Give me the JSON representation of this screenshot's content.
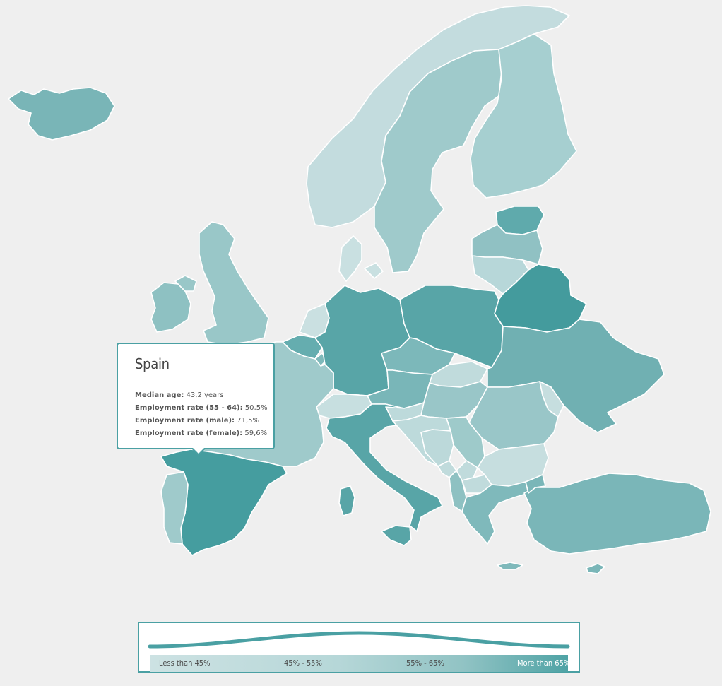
{
  "map": {
    "countries": [
      {
        "name": "Iceland",
        "fill": "#79b5b7"
      },
      {
        "name": "Norway",
        "fill": "#c3dcde"
      },
      {
        "name": "Sweden",
        "fill": "#9fcacb"
      },
      {
        "name": "Finland",
        "fill": "#a6cfd0"
      },
      {
        "name": "Estonia",
        "fill": "#5faaac"
      },
      {
        "name": "Latvia",
        "fill": "#90c1c3"
      },
      {
        "name": "Lithuania",
        "fill": "#b7d7d9"
      },
      {
        "name": "Belarus",
        "fill": "#449b9d"
      },
      {
        "name": "Ireland",
        "fill": "#8ec1c2"
      },
      {
        "name": "United Kingdom",
        "fill": "#99c7c8"
      },
      {
        "name": "Denmark",
        "fill": "#c9e0e1"
      },
      {
        "name": "Netherlands",
        "fill": "#cae0e1"
      },
      {
        "name": "Belgium",
        "fill": "#65adaf"
      },
      {
        "name": "Luxembourg",
        "fill": "#7fb9ba"
      },
      {
        "name": "Germany",
        "fill": "#58a5a7"
      },
      {
        "name": "Poland",
        "fill": "#58a5a7"
      },
      {
        "name": "Czechia",
        "fill": "#7cb8ba"
      },
      {
        "name": "Slovakia",
        "fill": "#c0dbdc"
      },
      {
        "name": "Austria",
        "fill": "#79b6b8"
      },
      {
        "name": "Switzerland",
        "fill": "#c7dfe0"
      },
      {
        "name": "France",
        "fill": "#9fcacb"
      },
      {
        "name": "Spain",
        "fill": "#459d9f"
      },
      {
        "name": "Portugal",
        "fill": "#9fcacb"
      },
      {
        "name": "Italy",
        "fill": "#58a5a7"
      },
      {
        "name": "Slovenia",
        "fill": "#bddadb"
      },
      {
        "name": "Hungary",
        "fill": "#99c6c8"
      },
      {
        "name": "Ukraine",
        "fill": "#70b0b2"
      },
      {
        "name": "Moldova",
        "fill": "#c6dedf"
      },
      {
        "name": "Romania",
        "fill": "#99c6c8"
      },
      {
        "name": "Croatia",
        "fill": "#bddadb"
      },
      {
        "name": "Bosnia and Herzegovina",
        "fill": "#bcd9da"
      },
      {
        "name": "Serbia",
        "fill": "#9ecaca"
      },
      {
        "name": "Montenegro",
        "fill": "#c0dbdc"
      },
      {
        "name": "Kosovo",
        "fill": "#c0dbdc"
      },
      {
        "name": "Albania",
        "fill": "#8ec1c2"
      },
      {
        "name": "North Macedonia",
        "fill": "#c0dbdc"
      },
      {
        "name": "Bulgaria",
        "fill": "#c6dedf"
      },
      {
        "name": "Greece",
        "fill": "#7fb9bb"
      },
      {
        "name": "Turkey",
        "fill": "#7ab6b8"
      },
      {
        "name": "Cyprus",
        "fill": "#7ab6b8"
      }
    ]
  },
  "tooltip": {
    "title": "Spain",
    "rows": [
      {
        "label": "Median age:",
        "value": "43,2 years"
      },
      {
        "label": "Employment rate (55 - 64):",
        "value": "50,5%"
      },
      {
        "label": "Employment rate (male):",
        "value": "71,5%"
      },
      {
        "label": "Employment rate (female):",
        "value": "59,6%"
      }
    ]
  },
  "legend": {
    "labels": [
      "Less than 45%",
      "45% - 55%",
      "55% - 65%",
      "More than 65%"
    ],
    "accent": "#4aa0a3"
  }
}
